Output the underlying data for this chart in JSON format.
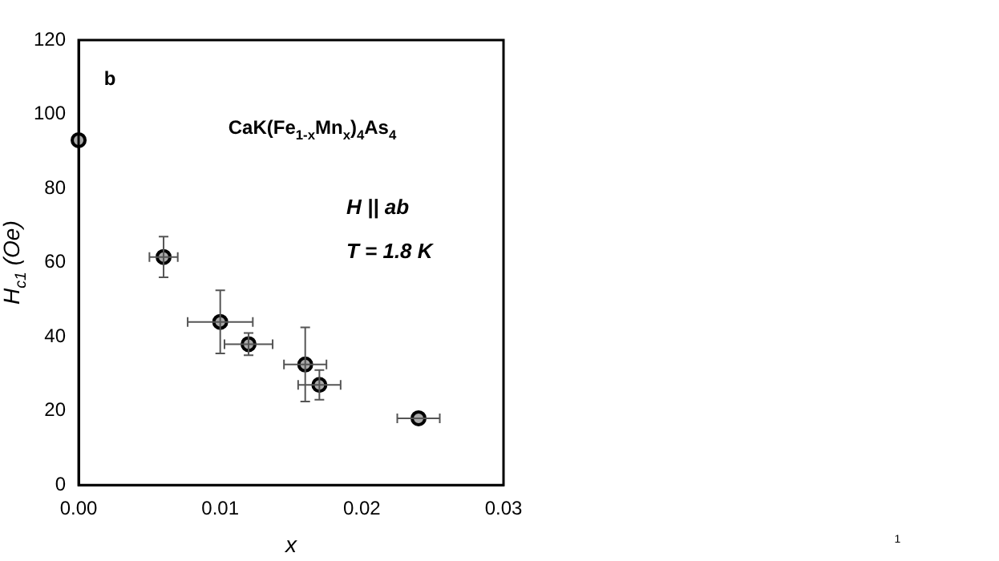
{
  "chart_data": {
    "type": "scatter",
    "xlabel": "x",
    "ylabel": "H$_{c1}$ (Oe)",
    "annotations": [
      "b",
      "CaK(Fe$_{1-x}$Mn$_{x}$)$_{4}$As$_{4}$",
      "H || ab",
      "T = 1.8 K",
      "1"
    ],
    "x": [
      0,
      0.006,
      0.01,
      0.012,
      0.016,
      0.017,
      0.024
    ],
    "values": [
      93,
      61.5,
      44,
      38,
      32.5,
      27,
      18
    ],
    "errors": [
      null,
      5.5,
      8.5,
      3,
      10,
      4,
      null
    ],
    "xerrors": [
      null,
      0.001,
      0.0023,
      0.0017,
      0.0015,
      0.0015,
      0.0015
    ],
    "color": "#000000",
    "marker": "circle",
    "xlim": [
      0,
      0.03
    ],
    "xticks": [
      {
        "value": 0,
        "label": "0.00"
      },
      0.01,
      0.02,
      0.03
    ],
    "ylim": [
      0,
      120
    ],
    "yticks": [
      0,
      20,
      40,
      60,
      80,
      100,
      120
    ],
    "grid": false,
    "legend": false
  }
}
